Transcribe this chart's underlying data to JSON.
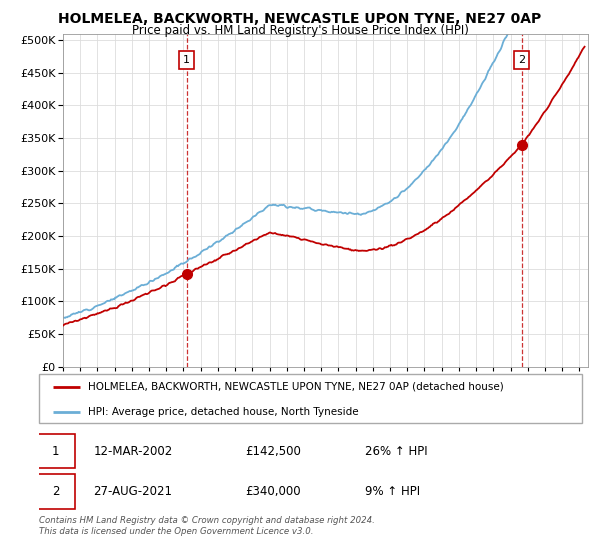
{
  "title": "HOLMELEA, BACKWORTH, NEWCASTLE UPON TYNE, NE27 0AP",
  "subtitle": "Price paid vs. HM Land Registry's House Price Index (HPI)",
  "ytick_vals": [
    0,
    50000,
    100000,
    150000,
    200000,
    250000,
    300000,
    350000,
    400000,
    450000,
    500000
  ],
  "ylim": [
    0,
    510000
  ],
  "xlim_start": 1995.0,
  "xlim_end": 2025.5,
  "hpi_color": "#6baed6",
  "price_color": "#c00000",
  "dashed_color": "#c00000",
  "point1_x": 2002.19,
  "point1_y": 142500,
  "point2_x": 2021.65,
  "point2_y": 340000,
  "legend_label_red": "HOLMELEA, BACKWORTH, NEWCASTLE UPON TYNE, NE27 0AP (detached house)",
  "legend_label_blue": "HPI: Average price, detached house, North Tyneside",
  "annotation1_date": "12-MAR-2002",
  "annotation1_price": "£142,500",
  "annotation1_hpi": "26% ↑ HPI",
  "annotation2_date": "27-AUG-2021",
  "annotation2_price": "£340,000",
  "annotation2_hpi": "9% ↑ HPI",
  "footer": "Contains HM Land Registry data © Crown copyright and database right 2024.\nThis data is licensed under the Open Government Licence v3.0.",
  "background_color": "#ffffff",
  "grid_color": "#dddddd"
}
